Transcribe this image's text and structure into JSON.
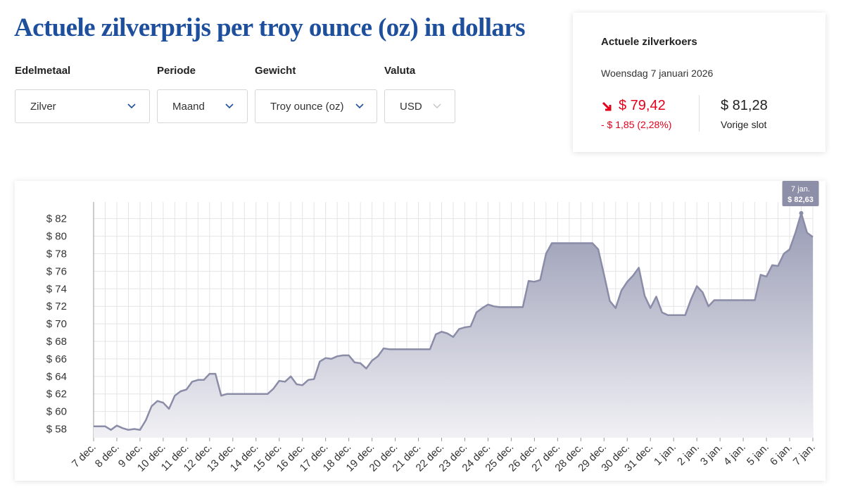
{
  "header": {
    "title": "Actuele zilverprijs per troy ounce (oz) in dollars"
  },
  "filters": [
    {
      "label": "Edelmetaal",
      "value": "Zilver"
    },
    {
      "label": "Periode",
      "value": "Maand"
    },
    {
      "label": "Gewicht",
      "value": "Troy ounce (oz)"
    },
    {
      "label": "Valuta",
      "value": "USD"
    }
  ],
  "quote": {
    "title": "Actuele zilverkoers",
    "date": "Woensdag 7 januari 2026",
    "price": "$ 79,42",
    "change": "- $ 1,85 (2,28%)",
    "previous_close": "$ 81,28",
    "previous_close_label": "Vorige slot"
  },
  "chart_data": {
    "type": "line",
    "color": "#8a8ca8",
    "grid": true,
    "xtick_labels": [
      "7 dec.",
      "8 dec.",
      "9 dec.",
      "10 dec.",
      "11 dec.",
      "12 dec.",
      "13 dec.",
      "14 dec.",
      "15 dec.",
      "16 dec.",
      "17 dec.",
      "18 dec.",
      "19 dec.",
      "20 dec.",
      "21 dec.",
      "22 dec.",
      "23 dec.",
      "24 dec.",
      "25 dec.",
      "26 dec.",
      "27 dec.",
      "28 dec.",
      "29 dec.",
      "30 dec.",
      "31 dec.",
      "1 jan.",
      "2 jan.",
      "3 jan.",
      "4 jan.",
      "5 jan.",
      "6 jan.",
      "7 jan."
    ],
    "values": [
      58.3,
      58.3,
      58.3,
      57.9,
      58.4,
      58.1,
      57.9,
      58.0,
      57.9,
      59.0,
      60.6,
      61.2,
      61.0,
      60.3,
      61.8,
      62.3,
      62.5,
      63.4,
      63.6,
      63.6,
      64.3,
      64.3,
      61.8,
      62.0,
      62.0,
      62.0,
      62.0,
      62.0,
      62.0,
      62.0,
      62.0,
      62.6,
      63.5,
      63.4,
      64.0,
      63.1,
      63.0,
      63.6,
      63.7,
      65.7,
      66.1,
      66.0,
      66.3,
      66.4,
      66.4,
      65.6,
      65.5,
      64.9,
      65.8,
      66.3,
      67.2,
      67.1,
      67.1,
      67.1,
      67.1,
      67.1,
      67.1,
      67.1,
      67.1,
      68.8,
      69.1,
      68.9,
      68.5,
      69.4,
      69.6,
      69.7,
      71.3,
      71.8,
      72.2,
      72.0,
      71.9,
      71.9,
      71.9,
      71.9,
      71.9,
      74.9,
      74.8,
      75.0,
      78.0,
      79.2,
      79.2,
      79.2,
      79.2,
      79.2,
      79.2,
      79.2,
      79.2,
      78.5,
      75.6,
      72.6,
      71.8,
      73.8,
      74.8,
      75.5,
      76.4,
      73.2,
      71.8,
      73.1,
      71.3,
      71.0,
      71.0,
      71.0,
      71.0,
      72.8,
      74.3,
      73.6,
      72.0,
      72.7,
      72.7,
      72.7,
      72.7,
      72.7,
      72.7,
      72.7,
      72.7,
      75.6,
      75.4,
      76.7,
      76.6,
      78.0,
      78.5,
      80.4,
      82.63,
      80.4,
      79.9
    ],
    "ylim": [
      57,
      83.9
    ],
    "yticks": [
      {
        "value": 58,
        "label": "$ 58"
      },
      {
        "value": 60,
        "label": "$ 60"
      },
      {
        "value": 62,
        "label": "$ 62"
      },
      {
        "value": 64,
        "label": "$ 64"
      },
      {
        "value": 66,
        "label": "$ 66"
      },
      {
        "value": 68,
        "label": "$ 68"
      },
      {
        "value": 70,
        "label": "$ 70"
      },
      {
        "value": 72,
        "label": "$ 72"
      },
      {
        "value": 74,
        "label": "$ 74"
      },
      {
        "value": 76,
        "label": "$ 76"
      },
      {
        "value": 78,
        "label": "$ 78"
      },
      {
        "value": 80,
        "label": "$ 80"
      },
      {
        "value": 82,
        "label": "$ 82"
      }
    ],
    "tooltip": {
      "x": "7 jan.",
      "value": "$ 82,63"
    }
  }
}
